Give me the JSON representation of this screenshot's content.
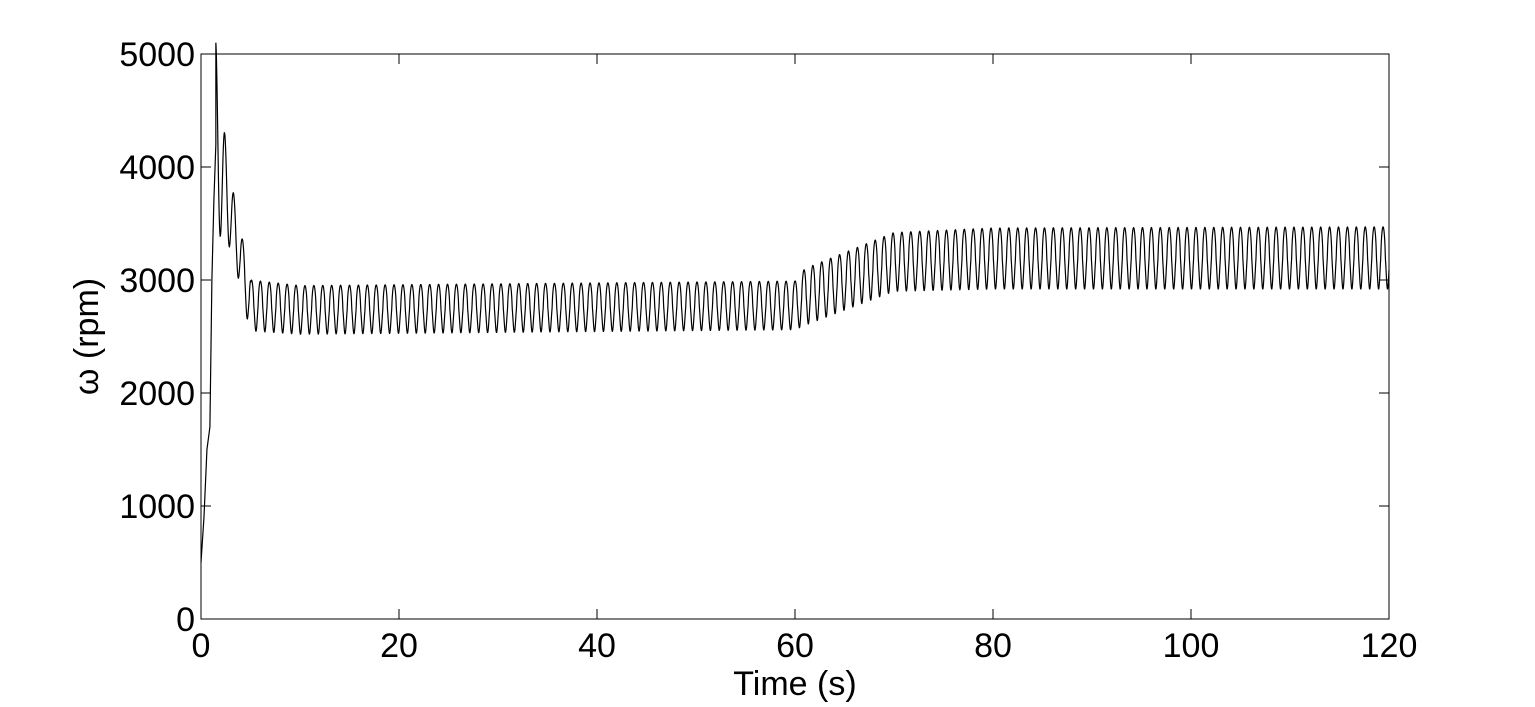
{
  "chart_data": {
    "type": "line",
    "title": "",
    "xlabel": "Time (s)",
    "ylabel": "ω (rpm)",
    "xlim": [
      0,
      120
    ],
    "ylim": [
      0,
      5000
    ],
    "xticks": [
      0,
      20,
      40,
      60,
      80,
      100,
      120
    ],
    "yticks": [
      0,
      1000,
      2000,
      3000,
      4000,
      5000
    ],
    "grid": false,
    "line_color": "#000000",
    "series": [
      {
        "envelope": [
          {
            "t": 0,
            "low": 500,
            "high": 500
          },
          {
            "t": 1.5,
            "low": 4200,
            "high": 4200
          },
          {
            "t": 5,
            "low": 2550,
            "high": 3000
          },
          {
            "t": 10,
            "low": 2520,
            "high": 2950
          },
          {
            "t": 60,
            "low": 2560,
            "high": 2990
          },
          {
            "t": 61,
            "low": 2600,
            "high": 3100
          },
          {
            "t": 70,
            "low": 2900,
            "high": 3420
          },
          {
            "t": 80,
            "low": 2920,
            "high": 3460
          },
          {
            "t": 120,
            "low": 2920,
            "high": 3470
          }
        ],
        "oscillation_period_s": 0.9
      }
    ]
  }
}
